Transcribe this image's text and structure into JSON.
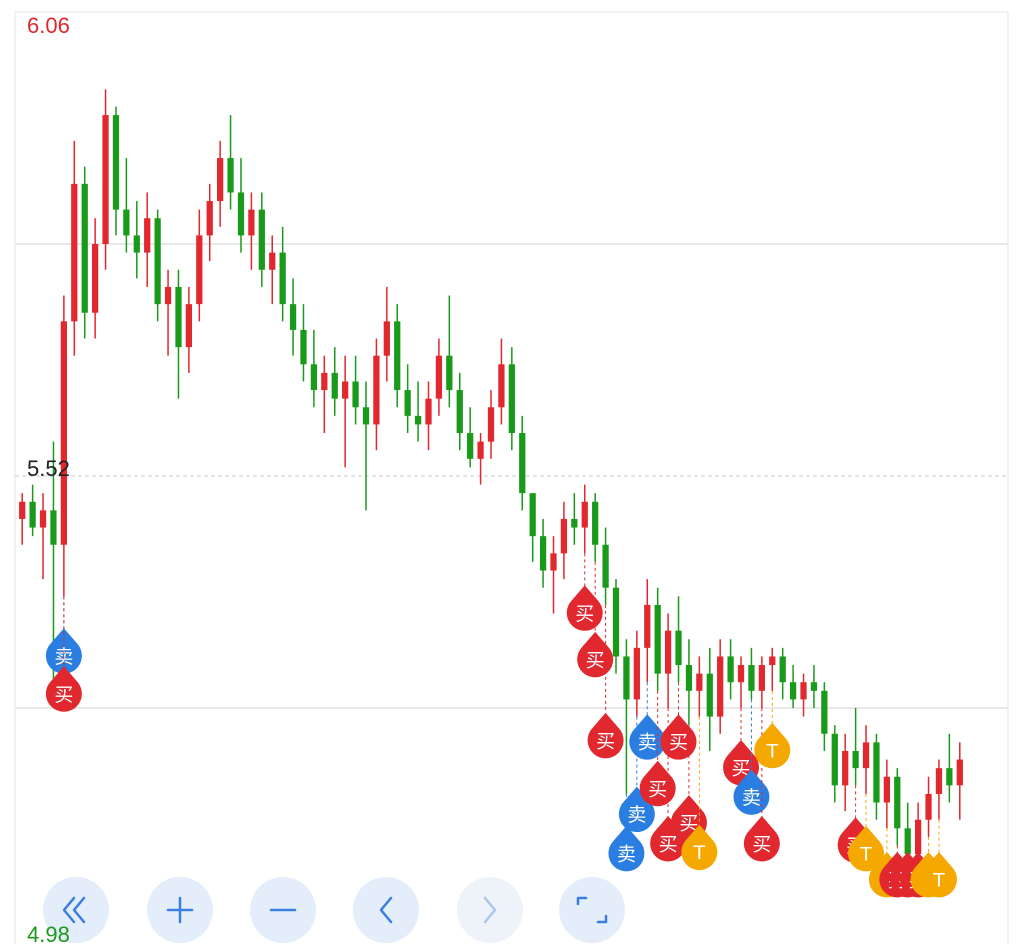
{
  "chart_data": {
    "type": "candlestick",
    "ylim": [
      4.98,
      6.06
    ],
    "yticks": [
      6.06,
      5.52,
      4.98
    ],
    "tick_colors": [
      "#e0282e",
      "#222222",
      "#1a9a1a"
    ],
    "grid_values": [
      5.79,
      5.25
    ],
    "reference_line": 5.52,
    "up_color": "#e0282e",
    "down_color": "#1a9a1a",
    "ohlc": [
      [
        5.47,
        5.5,
        5.44,
        5.49
      ],
      [
        5.49,
        5.51,
        5.45,
        5.46
      ],
      [
        5.46,
        5.5,
        5.4,
        5.48
      ],
      [
        5.48,
        5.56,
        5.28,
        5.44
      ],
      [
        5.44,
        5.73,
        5.38,
        5.7
      ],
      [
        5.7,
        5.91,
        5.66,
        5.86
      ],
      [
        5.86,
        5.88,
        5.68,
        5.71
      ],
      [
        5.71,
        5.82,
        5.68,
        5.79
      ],
      [
        5.79,
        5.97,
        5.76,
        5.94
      ],
      [
        5.94,
        5.95,
        5.8,
        5.83
      ],
      [
        5.83,
        5.89,
        5.78,
        5.8
      ],
      [
        5.8,
        5.84,
        5.75,
        5.78
      ],
      [
        5.78,
        5.85,
        5.74,
        5.82
      ],
      [
        5.82,
        5.83,
        5.7,
        5.72
      ],
      [
        5.72,
        5.76,
        5.66,
        5.74
      ],
      [
        5.74,
        5.76,
        5.61,
        5.67
      ],
      [
        5.67,
        5.74,
        5.64,
        5.72
      ],
      [
        5.72,
        5.83,
        5.7,
        5.8
      ],
      [
        5.8,
        5.86,
        5.77,
        5.84
      ],
      [
        5.84,
        5.91,
        5.81,
        5.89
      ],
      [
        5.89,
        5.94,
        5.83,
        5.85
      ],
      [
        5.85,
        5.89,
        5.78,
        5.8
      ],
      [
        5.8,
        5.85,
        5.76,
        5.83
      ],
      [
        5.83,
        5.85,
        5.74,
        5.76
      ],
      [
        5.76,
        5.8,
        5.72,
        5.78
      ],
      [
        5.78,
        5.81,
        5.7,
        5.72
      ],
      [
        5.72,
        5.75,
        5.66,
        5.69
      ],
      [
        5.69,
        5.72,
        5.63,
        5.65
      ],
      [
        5.65,
        5.69,
        5.6,
        5.62
      ],
      [
        5.62,
        5.66,
        5.57,
        5.64
      ],
      [
        5.64,
        5.67,
        5.59,
        5.61
      ],
      [
        5.61,
        5.66,
        5.53,
        5.63
      ],
      [
        5.63,
        5.66,
        5.58,
        5.6
      ],
      [
        5.6,
        5.63,
        5.48,
        5.58
      ],
      [
        5.58,
        5.68,
        5.55,
        5.66
      ],
      [
        5.66,
        5.74,
        5.63,
        5.7
      ],
      [
        5.7,
        5.72,
        5.6,
        5.62
      ],
      [
        5.62,
        5.65,
        5.57,
        5.59
      ],
      [
        5.59,
        5.63,
        5.56,
        5.58
      ],
      [
        5.58,
        5.63,
        5.55,
        5.61
      ],
      [
        5.61,
        5.68,
        5.59,
        5.66
      ],
      [
        5.66,
        5.73,
        5.6,
        5.62
      ],
      [
        5.62,
        5.64,
        5.55,
        5.57
      ],
      [
        5.57,
        5.6,
        5.53,
        5.54
      ],
      [
        5.54,
        5.57,
        5.51,
        5.56
      ],
      [
        5.56,
        5.62,
        5.54,
        5.6
      ],
      [
        5.6,
        5.68,
        5.58,
        5.65
      ],
      [
        5.65,
        5.67,
        5.55,
        5.57
      ],
      [
        5.57,
        5.59,
        5.48,
        5.5
      ],
      [
        5.5,
        5.5,
        5.42,
        5.45
      ],
      [
        5.45,
        5.47,
        5.39,
        5.41
      ],
      [
        5.41,
        5.45,
        5.36,
        5.43
      ],
      [
        5.43,
        5.49,
        5.4,
        5.47
      ],
      [
        5.47,
        5.5,
        5.44,
        5.46
      ],
      [
        5.46,
        5.51,
        5.43,
        5.49
      ],
      [
        5.49,
        5.5,
        5.42,
        5.44
      ],
      [
        5.44,
        5.46,
        5.37,
        5.39
      ],
      [
        5.39,
        5.4,
        5.29,
        5.31
      ],
      [
        5.31,
        5.33,
        5.15,
        5.26
      ],
      [
        5.26,
        5.34,
        5.24,
        5.32
      ],
      [
        5.32,
        5.4,
        5.28,
        5.37
      ],
      [
        5.37,
        5.39,
        5.27,
        5.29
      ],
      [
        5.29,
        5.36,
        5.25,
        5.34
      ],
      [
        5.34,
        5.38,
        5.28,
        5.3
      ],
      [
        5.3,
        5.33,
        5.23,
        5.27
      ],
      [
        5.27,
        5.31,
        5.24,
        5.29
      ],
      [
        5.29,
        5.32,
        5.2,
        5.24
      ],
      [
        5.24,
        5.33,
        5.22,
        5.31
      ],
      [
        5.31,
        5.33,
        5.26,
        5.28
      ],
      [
        5.28,
        5.31,
        5.25,
        5.3
      ],
      [
        5.3,
        5.32,
        5.26,
        5.27
      ],
      [
        5.27,
        5.31,
        5.25,
        5.3
      ],
      [
        5.3,
        5.32,
        5.27,
        5.31
      ],
      [
        5.31,
        5.32,
        5.26,
        5.28
      ],
      [
        5.28,
        5.3,
        5.25,
        5.26
      ],
      [
        5.26,
        5.29,
        5.24,
        5.28
      ],
      [
        5.28,
        5.3,
        5.25,
        5.27
      ],
      [
        5.27,
        5.28,
        5.2,
        5.22
      ],
      [
        5.22,
        5.23,
        5.14,
        5.16
      ],
      [
        5.16,
        5.22,
        5.13,
        5.2
      ],
      [
        5.2,
        5.25,
        5.16,
        5.18
      ],
      [
        5.18,
        5.23,
        5.15,
        5.21
      ],
      [
        5.21,
        5.22,
        5.12,
        5.14
      ],
      [
        5.14,
        5.19,
        5.11,
        5.17
      ],
      [
        5.17,
        5.18,
        5.09,
        5.11
      ],
      [
        5.11,
        5.14,
        5.06,
        5.08
      ],
      [
        5.08,
        5.14,
        5.07,
        5.12
      ],
      [
        5.12,
        5.17,
        5.1,
        5.15
      ],
      [
        5.15,
        5.19,
        5.12,
        5.18
      ],
      [
        5.18,
        5.22,
        5.14,
        5.16
      ],
      [
        5.16,
        5.21,
        5.12,
        5.19
      ]
    ],
    "markers": [
      {
        "label": "卖",
        "index": 4,
        "color": "#2a7de1"
      },
      {
        "label": "买",
        "index": 4,
        "color": "#e0282e"
      },
      {
        "label": "买",
        "index": 54,
        "color": "#e0282e"
      },
      {
        "label": "买",
        "index": 55,
        "color": "#e0282e"
      },
      {
        "label": "买",
        "index": 56,
        "color": "#e0282e"
      },
      {
        "label": "卖",
        "index": 58,
        "color": "#2a7de1"
      },
      {
        "label": "卖",
        "index": 59,
        "color": "#2a7de1"
      },
      {
        "label": "卖",
        "index": 60,
        "color": "#2a7de1"
      },
      {
        "label": "买",
        "index": 61,
        "color": "#e0282e"
      },
      {
        "label": "买",
        "index": 62,
        "color": "#e0282e"
      },
      {
        "label": "买",
        "index": 63,
        "color": "#e0282e"
      },
      {
        "label": "买",
        "index": 64,
        "color": "#e0282e"
      },
      {
        "label": "T",
        "index": 65,
        "color": "#f5a800"
      },
      {
        "label": "买",
        "index": 69,
        "color": "#e0282e"
      },
      {
        "label": "卖",
        "index": 70,
        "color": "#2a7de1"
      },
      {
        "label": "买",
        "index": 71,
        "color": "#e0282e"
      },
      {
        "label": "T",
        "index": 72,
        "color": "#f5a800"
      },
      {
        "label": "买",
        "index": 80,
        "color": "#e0282e"
      },
      {
        "label": "T",
        "index": 81,
        "color": "#f5a800"
      },
      {
        "label": "T",
        "index": 83,
        "color": "#f5a800"
      },
      {
        "label": "买",
        "index": 84,
        "color": "#e0282e"
      },
      {
        "label": "买",
        "index": 85,
        "color": "#e0282e"
      },
      {
        "label": "买",
        "index": 86,
        "color": "#e0282e"
      },
      {
        "label": "T",
        "index": 87,
        "color": "#f5a800"
      },
      {
        "label": "T",
        "index": 88,
        "color": "#f5a800"
      }
    ]
  }
}
